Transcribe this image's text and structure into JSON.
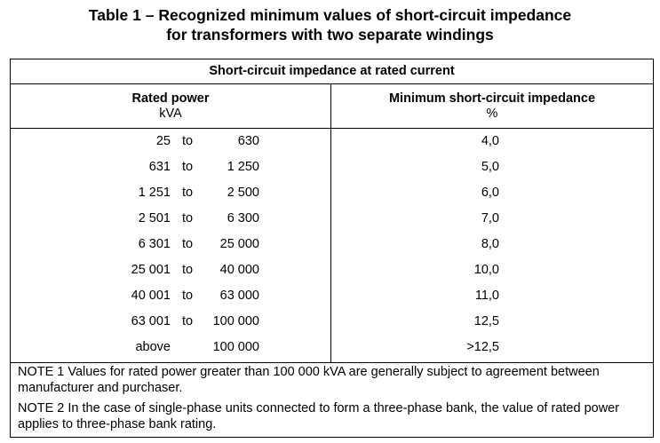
{
  "title": {
    "line1": "Table 1 – Recognized minimum values of short-circuit impedance",
    "line2": "for transformers with two separate windings"
  },
  "table": {
    "caption": "Short-circuit impedance at rated current",
    "col1": {
      "label": "Rated power",
      "unit": "kVA"
    },
    "col2": {
      "label": "Minimum short-circuit impedance",
      "unit": "%"
    },
    "rows": [
      {
        "from": "25",
        "sep": "to",
        "to": "630",
        "value": "4,0"
      },
      {
        "from": "631",
        "sep": "to",
        "to": "1 250",
        "value": "5,0"
      },
      {
        "from": "1 251",
        "sep": "to",
        "to": "2 500",
        "value": "6,0"
      },
      {
        "from": "2 501",
        "sep": "to",
        "to": "6 300",
        "value": "7,0"
      },
      {
        "from": "6 301",
        "sep": "to",
        "to": "25 000",
        "value": "8,0"
      },
      {
        "from": "25 001",
        "sep": "to",
        "to": "40 000",
        "value": "10,0"
      },
      {
        "from": "40 001",
        "sep": "to",
        "to": "63 000",
        "value": "11,0"
      },
      {
        "from": "63 001",
        "sep": "to",
        "to": "100 000",
        "value": "12,5"
      },
      {
        "from": "above",
        "sep": "",
        "to": "100 000",
        "value": ">12,5"
      }
    ],
    "notes": [
      "NOTE 1   Values for rated power greater than 100 000 kVA are generally subject to agreement between manufacturer and purchaser.",
      "NOTE 2   In the case of single-phase units connected to form a three-phase bank, the value of rated power applies to three-phase bank rating."
    ]
  }
}
